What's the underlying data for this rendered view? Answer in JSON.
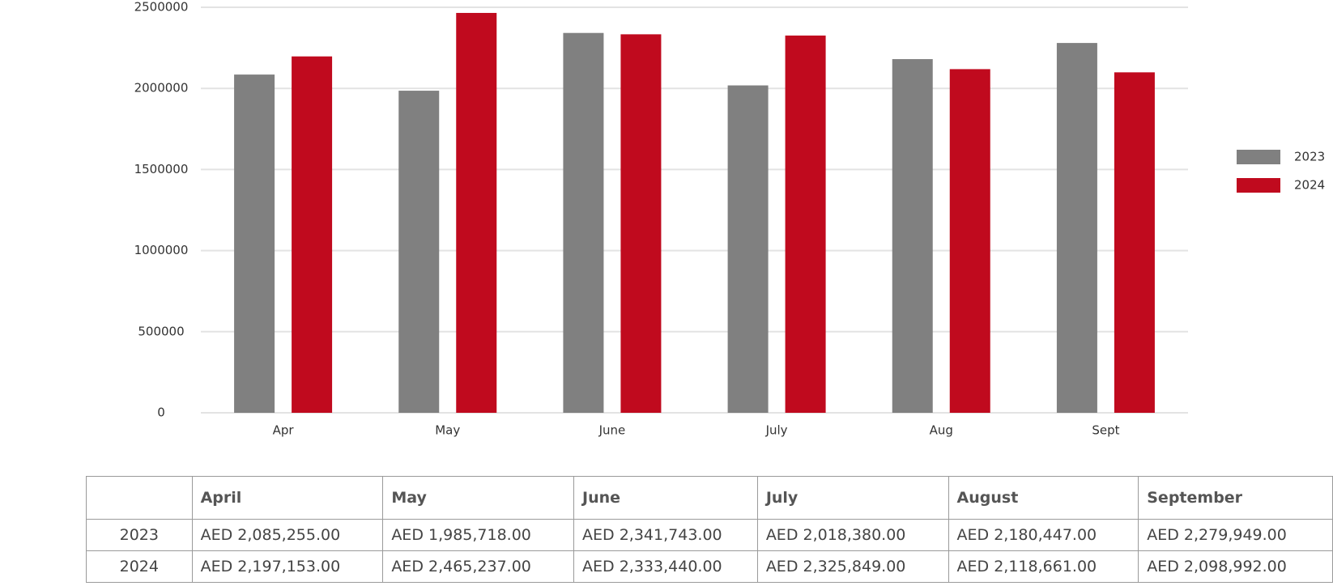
{
  "chart_data": {
    "type": "bar",
    "categories": [
      "Apr",
      "May",
      "June",
      "July",
      "Aug",
      "Sept"
    ],
    "series": [
      {
        "name": "2023",
        "color": "#808080",
        "values": [
          2085255,
          1985718,
          2341743,
          2018380,
          2180447,
          2279949
        ]
      },
      {
        "name": "2024",
        "color": "#C00A1E",
        "values": [
          2197153,
          2465237,
          2333440,
          2325849,
          2118661,
          2098992
        ]
      }
    ],
    "ylim": [
      0,
      2500000
    ],
    "yticks": [
      "0",
      "500000",
      "1000000",
      "1500000",
      "2000000",
      "2500000"
    ],
    "grid": true,
    "legend_position": "right"
  },
  "table": {
    "header": [
      "",
      "April",
      "May",
      "June",
      "July",
      "August",
      "September"
    ],
    "rows": [
      {
        "label": "2023",
        "cells": [
          "AED 2,085,255.00",
          "AED 1,985,718.00",
          "AED 2,341,743.00",
          "AED 2,018,380.00",
          "AED 2,180,447.00",
          "AED 2,279,949.00"
        ]
      },
      {
        "label": "2024",
        "cells": [
          "AED 2,197,153.00",
          "AED 2,465,237.00",
          "AED 2,333,440.00",
          "AED 2,325,849.00",
          "AED 2,118,661.00",
          "AED 2,098,992.00"
        ]
      }
    ]
  }
}
